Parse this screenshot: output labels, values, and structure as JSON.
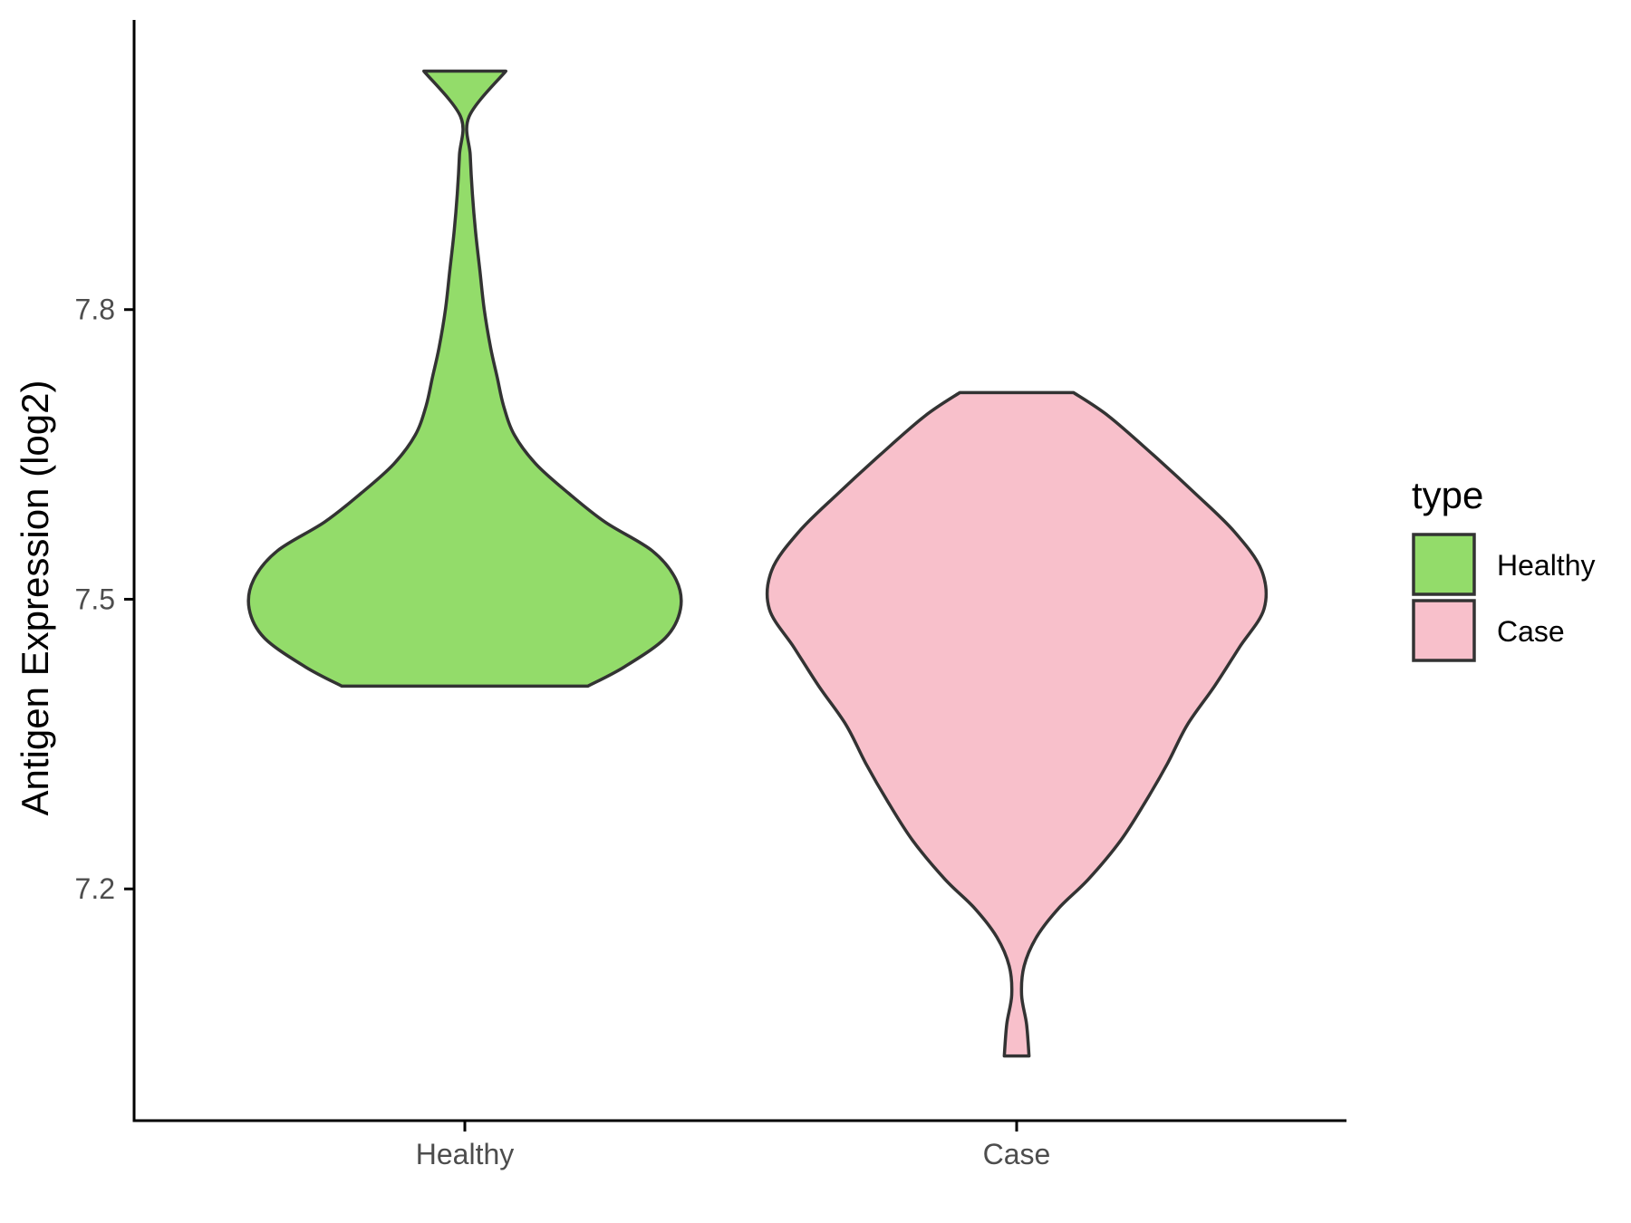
{
  "chart_data": {
    "type": "violin",
    "ylabel": "Antigen Expression (log2)",
    "xlabel": "",
    "yticks": [
      7.2,
      7.5,
      7.8
    ],
    "ytick_labels": [
      "7.2",
      "7.5",
      "7.8"
    ],
    "ylim": [
      6.96,
      8.1
    ],
    "categories": [
      "Healthy",
      "Case"
    ],
    "grid": false,
    "legend": {
      "title": "type",
      "position": "right",
      "entries": [
        "Healthy",
        "Case"
      ]
    },
    "series": [
      {
        "name": "Healthy",
        "color": "#93DC6A",
        "min": 7.41,
        "max": 8.047,
        "density": [
          [
            7.41,
            0.57
          ],
          [
            7.43,
            0.74
          ],
          [
            7.46,
            0.93
          ],
          [
            7.49,
            1.0
          ],
          [
            7.52,
            0.98
          ],
          [
            7.55,
            0.87
          ],
          [
            7.58,
            0.65
          ],
          [
            7.61,
            0.48
          ],
          [
            7.64,
            0.33
          ],
          [
            7.67,
            0.23
          ],
          [
            7.7,
            0.18
          ],
          [
            7.73,
            0.15
          ],
          [
            7.76,
            0.12
          ],
          [
            7.8,
            0.09
          ],
          [
            7.84,
            0.07
          ],
          [
            7.88,
            0.05
          ],
          [
            7.92,
            0.035
          ],
          [
            7.96,
            0.025
          ],
          [
            8.0,
            0.02
          ],
          [
            8.047,
            0.19
          ]
        ]
      },
      {
        "name": "Case",
        "color": "#F8C0CB",
        "min": 7.027,
        "max": 7.714,
        "density": [
          [
            7.027,
            0.05
          ],
          [
            7.06,
            0.04
          ],
          [
            7.09,
            0.02
          ],
          [
            7.12,
            0.03
          ],
          [
            7.15,
            0.08
          ],
          [
            7.18,
            0.17
          ],
          [
            7.21,
            0.29
          ],
          [
            7.25,
            0.42
          ],
          [
            7.29,
            0.52
          ],
          [
            7.33,
            0.61
          ],
          [
            7.37,
            0.69
          ],
          [
            7.41,
            0.8
          ],
          [
            7.45,
            0.9
          ],
          [
            7.49,
            1.0
          ],
          [
            7.53,
            0.99
          ],
          [
            7.57,
            0.88
          ],
          [
            7.61,
            0.72
          ],
          [
            7.65,
            0.55
          ],
          [
            7.69,
            0.37
          ],
          [
            7.714,
            0.23
          ]
        ]
      }
    ]
  }
}
